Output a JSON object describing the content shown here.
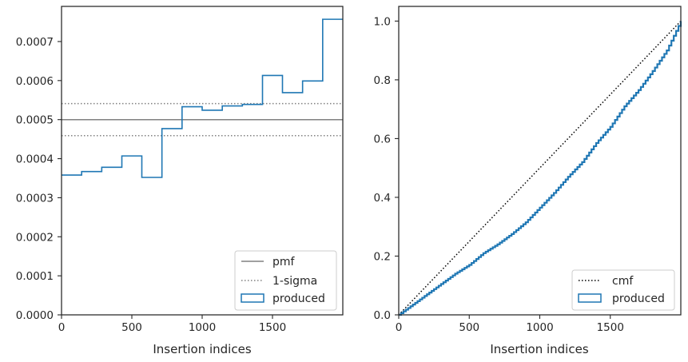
{
  "chart_data": [
    {
      "type": "line",
      "title": "",
      "xlabel": "Insertion indices",
      "ylabel": "",
      "xlim": [
        0,
        2000
      ],
      "ylim": [
        0,
        0.00079
      ],
      "xticks": [
        0,
        500,
        1000,
        1500
      ],
      "xtick_labels": [
        "0",
        "500",
        "1000",
        "1500"
      ],
      "yticks": [
        0,
        0.0001,
        0.0002,
        0.0003,
        0.0004,
        0.0005,
        0.0006,
        0.0007
      ],
      "ytick_labels": [
        "0.0000",
        "0.0001",
        "0.0002",
        "0.0003",
        "0.0004",
        "0.0005",
        "0.0006",
        "0.0007"
      ],
      "grid": false,
      "legend_position": "lower right",
      "series": [
        {
          "name": "pmf",
          "style": "solid",
          "color": "#808080",
          "x": [
            0,
            2000
          ],
          "y": [
            0.0005,
            0.0005
          ]
        },
        {
          "name": "1-sigma",
          "style": "dotted",
          "color": "#808080",
          "lines": [
            0.000541,
            0.000459
          ]
        },
        {
          "name": "produced",
          "style": "step",
          "color": "#1f77b4",
          "bin_edges": [
            0,
            143,
            286,
            429,
            571,
            714,
            857,
            1000,
            1143,
            1286,
            1429,
            1571,
            1714,
            1857,
            2000
          ],
          "values": [
            0.000358,
            0.000367,
            0.000378,
            0.000407,
            0.000352,
            0.000477,
            0.000533,
            0.000524,
            0.000535,
            0.000539,
            0.000613,
            0.000569,
            0.000599,
            0.000757
          ]
        }
      ],
      "legend": [
        "pmf",
        "1-sigma",
        "produced"
      ]
    },
    {
      "type": "line",
      "title": "",
      "xlabel": "Insertion indices",
      "ylabel": "",
      "xlim": [
        0,
        2000
      ],
      "ylim": [
        0,
        1.05
      ],
      "xticks": [
        0,
        500,
        1000,
        1500
      ],
      "xtick_labels": [
        "0",
        "500",
        "1000",
        "1500"
      ],
      "yticks": [
        0,
        0.2,
        0.4,
        0.6,
        0.8,
        1.0
      ],
      "ytick_labels": [
        "0.0",
        "0.2",
        "0.4",
        "0.6",
        "0.8",
        "1.0"
      ],
      "grid": false,
      "legend_position": "lower right",
      "series": [
        {
          "name": "cmf",
          "style": "dotted",
          "color": "#000000",
          "x": [
            0,
            2000
          ],
          "y": [
            0,
            1
          ]
        },
        {
          "name": "produced",
          "style": "solid",
          "color": "#1f77b4",
          "x": [
            0,
            100,
            200,
            300,
            400,
            500,
            600,
            700,
            800,
            900,
            1000,
            1100,
            1200,
            1300,
            1400,
            1500,
            1600,
            1700,
            1800,
            1900,
            2000
          ],
          "y": [
            0,
            0.035,
            0.07,
            0.105,
            0.14,
            0.17,
            0.21,
            0.24,
            0.275,
            0.315,
            0.365,
            0.415,
            0.47,
            0.52,
            0.585,
            0.64,
            0.71,
            0.765,
            0.83,
            0.9,
            1.0
          ]
        }
      ],
      "legend": [
        "cmf",
        "produced"
      ]
    }
  ]
}
